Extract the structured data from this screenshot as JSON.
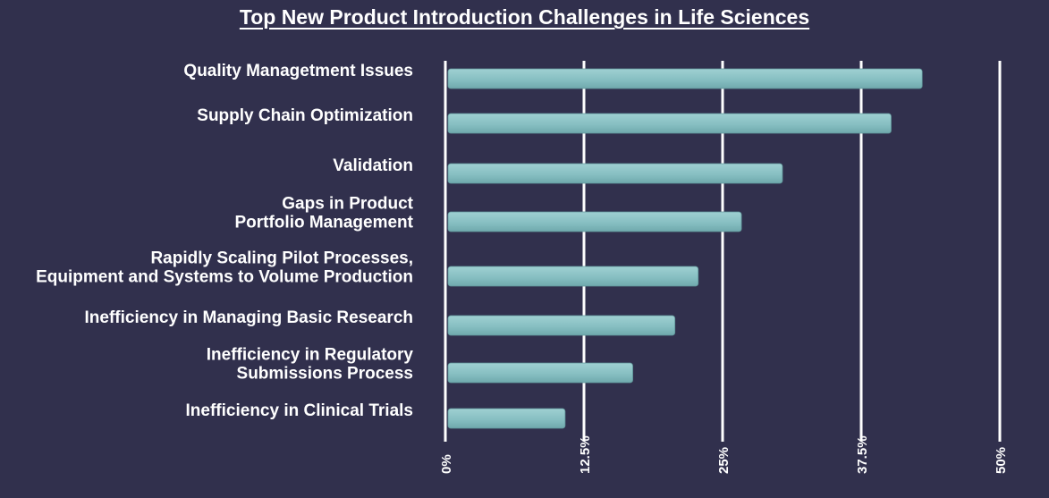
{
  "chart_data": {
    "type": "bar",
    "orientation": "horizontal",
    "title": "Top New Product Introduction Challenges in Life Sciences",
    "categories": [
      [
        "Quality Managetment Issues"
      ],
      [
        "Supply Chain Optimization"
      ],
      [
        "Validation"
      ],
      [
        "Gaps in Product",
        "Portfolio Management"
      ],
      [
        "Rapidly Scaling Pilot Processes,",
        "Equipment and Systems to Volume Production"
      ],
      [
        "Inefficiency in Managing Basic Research"
      ],
      [
        "Inefficiency in Regulatory",
        "Submissions Process"
      ],
      [
        "Inefficiency in Clinical Trials"
      ]
    ],
    "values": [
      43,
      40.2,
      30.4,
      26.7,
      22.8,
      20.7,
      16.9,
      10.8
    ],
    "xlim": [
      0,
      50
    ],
    "xticks": [
      0,
      12.5,
      25,
      37.5,
      50
    ],
    "xtick_labels": [
      "0%",
      "12.5%",
      "25%",
      "37.5%",
      "50%"
    ],
    "grid": true,
    "colors": {
      "background": "#31304d",
      "bar": "#87bfc2",
      "text": "#ffffff",
      "grid": "#ffffff"
    }
  }
}
